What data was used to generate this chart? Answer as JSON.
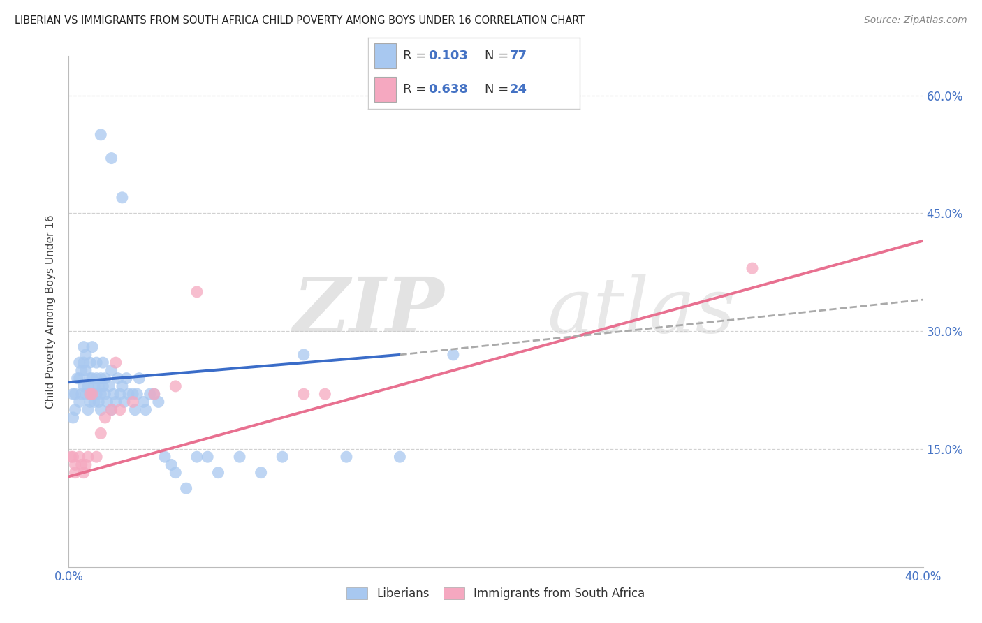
{
  "title": "LIBERIAN VS IMMIGRANTS FROM SOUTH AFRICA CHILD POVERTY AMONG BOYS UNDER 16 CORRELATION CHART",
  "source": "Source: ZipAtlas.com",
  "ylabel": "Child Poverty Among Boys Under 16",
  "xlim": [
    0.0,
    0.4
  ],
  "ylim": [
    0.0,
    0.65
  ],
  "color_blue": "#A8C8F0",
  "color_pink": "#F5A8C0",
  "color_blue_line": "#3A6CC8",
  "color_pink_line": "#E87090",
  "color_dashed": "#AAAAAA",
  "color_text_blue": "#4472C4",
  "grid_color": "#CCCCCC",
  "background": "#FFFFFF",
  "liberian_x": [
    0.002,
    0.002,
    0.003,
    0.003,
    0.004,
    0.005,
    0.005,
    0.005,
    0.006,
    0.006,
    0.007,
    0.007,
    0.007,
    0.008,
    0.008,
    0.008,
    0.009,
    0.009,
    0.01,
    0.01,
    0.01,
    0.01,
    0.011,
    0.011,
    0.011,
    0.012,
    0.012,
    0.013,
    0.013,
    0.013,
    0.014,
    0.014,
    0.015,
    0.015,
    0.015,
    0.016,
    0.016,
    0.017,
    0.017,
    0.018,
    0.019,
    0.02,
    0.02,
    0.021,
    0.022,
    0.023,
    0.024,
    0.025,
    0.026,
    0.027,
    0.028,
    0.03,
    0.031,
    0.032,
    0.033,
    0.035,
    0.036,
    0.038,
    0.04,
    0.042,
    0.045,
    0.048,
    0.05,
    0.055,
    0.06,
    0.065,
    0.07,
    0.08,
    0.09,
    0.1,
    0.11,
    0.13,
    0.155,
    0.18,
    0.015,
    0.02,
    0.025
  ],
  "liberian_y": [
    0.22,
    0.19,
    0.22,
    0.2,
    0.24,
    0.21,
    0.24,
    0.26,
    0.22,
    0.25,
    0.26,
    0.28,
    0.23,
    0.25,
    0.22,
    0.27,
    0.23,
    0.2,
    0.22,
    0.24,
    0.26,
    0.21,
    0.24,
    0.22,
    0.28,
    0.23,
    0.21,
    0.24,
    0.22,
    0.26,
    0.21,
    0.23,
    0.22,
    0.24,
    0.2,
    0.23,
    0.26,
    0.22,
    0.24,
    0.21,
    0.23,
    0.2,
    0.25,
    0.22,
    0.21,
    0.24,
    0.22,
    0.23,
    0.21,
    0.24,
    0.22,
    0.22,
    0.2,
    0.22,
    0.24,
    0.21,
    0.2,
    0.22,
    0.22,
    0.21,
    0.14,
    0.13,
    0.12,
    0.1,
    0.14,
    0.14,
    0.12,
    0.14,
    0.12,
    0.14,
    0.27,
    0.14,
    0.14,
    0.27,
    0.55,
    0.52,
    0.47
  ],
  "sa_x": [
    0.001,
    0.002,
    0.003,
    0.003,
    0.005,
    0.006,
    0.007,
    0.008,
    0.009,
    0.01,
    0.011,
    0.013,
    0.015,
    0.017,
    0.02,
    0.022,
    0.024,
    0.03,
    0.04,
    0.05,
    0.06,
    0.11,
    0.12,
    0.32
  ],
  "sa_y": [
    0.14,
    0.14,
    0.12,
    0.13,
    0.14,
    0.13,
    0.12,
    0.13,
    0.14,
    0.22,
    0.22,
    0.14,
    0.17,
    0.19,
    0.2,
    0.26,
    0.2,
    0.21,
    0.22,
    0.23,
    0.35,
    0.22,
    0.22,
    0.38
  ],
  "blue_line_x": [
    0.0,
    0.155
  ],
  "blue_line_y": [
    0.235,
    0.27
  ],
  "pink_line_x": [
    0.0,
    0.4
  ],
  "pink_line_y": [
    0.115,
    0.415
  ],
  "dashed_line_x": [
    0.155,
    0.4
  ],
  "dashed_line_y": [
    0.27,
    0.34
  ]
}
